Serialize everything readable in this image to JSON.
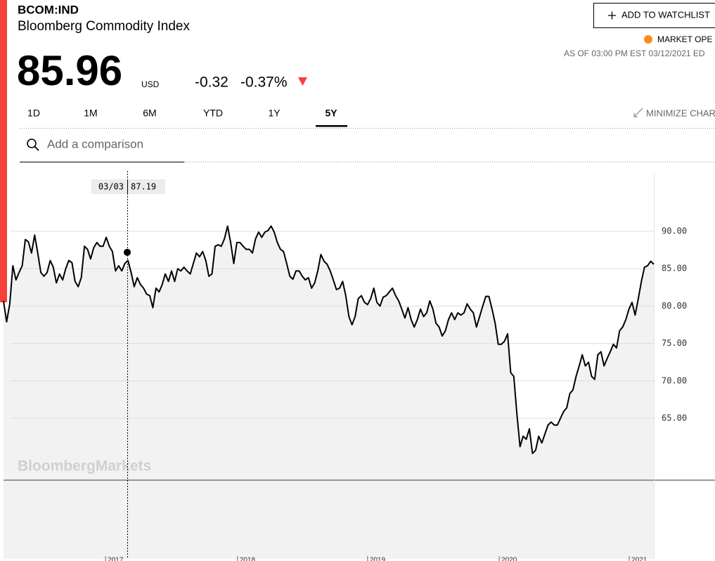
{
  "header": {
    "ticker": "BCOM:IND",
    "name": "Bloomberg Commodity Index",
    "price": "85.96",
    "currency": "USD",
    "change": "-0.32",
    "change_percent": "-0.37%",
    "watchlist_button": "ADD TO WATCHLIST",
    "market_status": "MARKET OPE",
    "as_of": "AS OF 03:00 PM EST 03/12/2021 ED"
  },
  "tabs": {
    "items": [
      "1D",
      "1M",
      "6M",
      "YTD",
      "1Y",
      "5Y"
    ],
    "active": 5,
    "minimize": "MINIMIZE CHAR"
  },
  "search": {
    "placeholder": "Add a comparison"
  },
  "watermark": "BloombergMarkets",
  "tooltip": {
    "date": "03/03",
    "value": 87.19
  },
  "chart_data": {
    "type": "line",
    "series": [
      {
        "color": "#000000",
        "values": [
          80.7,
          77.9,
          80.3,
          85.4,
          83.5,
          84.5,
          85.4,
          88.9,
          88.6,
          87.1,
          89.5,
          87.1,
          84.5,
          84.0,
          84.5,
          86.1,
          85.2,
          83.1,
          84.3,
          83.5,
          85.0,
          86.1,
          85.8,
          83.3,
          82.6,
          83.8,
          88.0,
          87.6,
          86.3,
          87.8,
          88.5,
          88.0,
          88.0,
          89.2,
          88.0,
          87.3,
          84.7,
          85.4,
          84.7,
          85.7,
          86.1,
          84.5,
          82.6,
          83.8,
          82.9,
          82.4,
          81.6,
          81.4,
          79.8,
          82.4,
          81.9,
          82.9,
          84.3,
          83.3,
          84.7,
          83.3,
          85.0,
          84.7,
          85.2,
          84.7,
          84.3,
          85.7,
          87.1,
          86.6,
          87.3,
          86.1,
          84.0,
          84.3,
          88.0,
          88.2,
          88.0,
          89.0,
          90.7,
          88.5,
          85.7,
          88.5,
          88.5,
          88.0,
          87.6,
          87.6,
          87.1,
          89.0,
          89.9,
          89.2,
          89.9,
          90.1,
          90.7,
          89.9,
          88.5,
          87.6,
          87.3,
          85.7,
          84.0,
          83.6,
          84.7,
          84.7,
          84.0,
          83.5,
          83.8,
          82.4,
          83.1,
          84.7,
          86.9,
          86.0,
          85.6,
          84.7,
          83.5,
          82.2,
          82.4,
          83.3,
          81.4,
          78.6,
          77.5,
          78.6,
          81.0,
          81.4,
          80.5,
          80.2,
          81.0,
          82.4,
          80.5,
          80.0,
          81.2,
          81.4,
          81.9,
          82.4,
          81.4,
          80.7,
          79.6,
          78.4,
          79.8,
          78.2,
          77.2,
          78.2,
          79.6,
          78.6,
          79.1,
          80.7,
          79.6,
          77.7,
          77.2,
          76.0,
          76.7,
          78.2,
          79.1,
          78.2,
          79.1,
          78.8,
          79.1,
          80.3,
          79.6,
          79.1,
          77.2,
          78.6,
          80.0,
          81.3,
          81.3,
          79.6,
          77.7,
          74.9,
          74.9,
          75.3,
          76.3,
          71.1,
          70.6,
          65.5,
          61.2,
          62.6,
          62.2,
          63.6,
          60.3,
          60.7,
          62.6,
          61.7,
          62.9,
          64.1,
          64.5,
          64.1,
          64.1,
          65.0,
          65.9,
          66.4,
          68.3,
          68.8,
          70.6,
          72.0,
          73.5,
          72.0,
          72.5,
          70.6,
          70.2,
          73.5,
          73.9,
          72.0,
          73.0,
          73.9,
          74.9,
          74.4,
          76.7,
          77.2,
          78.2,
          79.6,
          80.5,
          78.8,
          81.0,
          83.3,
          85.2,
          85.4,
          86.0,
          85.6
        ]
      }
    ],
    "xlim": [
      0,
      209
    ],
    "xticks": [
      {
        "value": 32.8,
        "label": "2017"
      },
      {
        "value": 75.2,
        "label": "2018"
      },
      {
        "value": 117,
        "label": "2019"
      },
      {
        "value": 159.3,
        "label": "2020"
      },
      {
        "value": 201.1,
        "label": "2021"
      }
    ],
    "ylim": [
      46.2,
      97.9
    ],
    "yticks": [
      {
        "value": 65,
        "label": "65.00"
      },
      {
        "value": 70,
        "label": "70.00"
      },
      {
        "value": 75,
        "label": "75.00"
      },
      {
        "value": 80,
        "label": "80.00"
      },
      {
        "value": 85,
        "label": "85.00"
      },
      {
        "value": 90,
        "label": "90.00"
      }
    ],
    "grid": true,
    "fill": "#f2f2f2"
  }
}
